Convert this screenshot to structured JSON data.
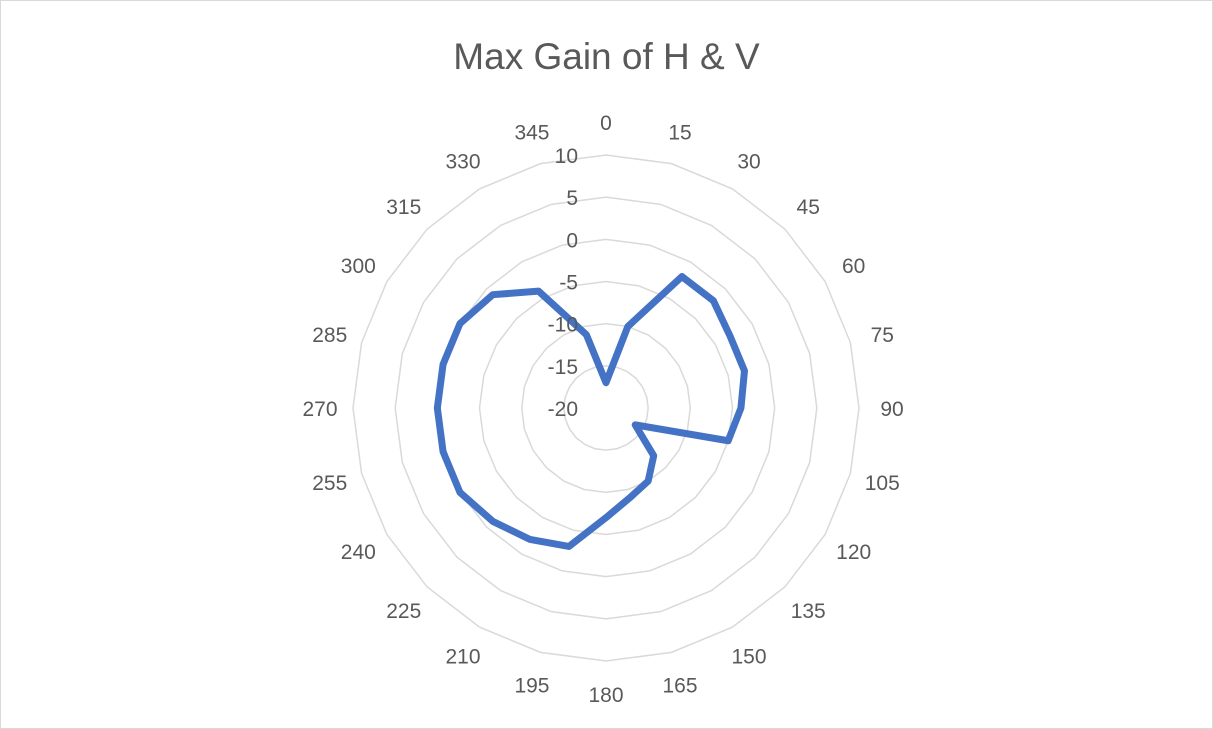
{
  "chart_data": {
    "type": "radar",
    "title": "Max Gain of H & V",
    "categories": [
      "0",
      "15",
      "30",
      "45",
      "60",
      "75",
      "90",
      "105",
      "120",
      "135",
      "150",
      "165",
      "180",
      "195",
      "210",
      "225",
      "240",
      "255",
      "270",
      "285",
      "300",
      "315",
      "330",
      "345"
    ],
    "radial_ticks": [
      "-20",
      "-15",
      "-10",
      "-5",
      "0",
      "5",
      "10"
    ],
    "rlim": [
      -20,
      10
    ],
    "grid": true,
    "series_color": "#4472c4",
    "series": [
      {
        "values": [
          -17,
          -10,
          -2,
          -2,
          -3,
          -3,
          -4,
          -5,
          -16,
          -12,
          -10,
          -9,
          -7,
          -3,
          -2,
          -1,
          0,
          0,
          0,
          0,
          0,
          -1,
          -4,
          -11
        ]
      }
    ]
  }
}
